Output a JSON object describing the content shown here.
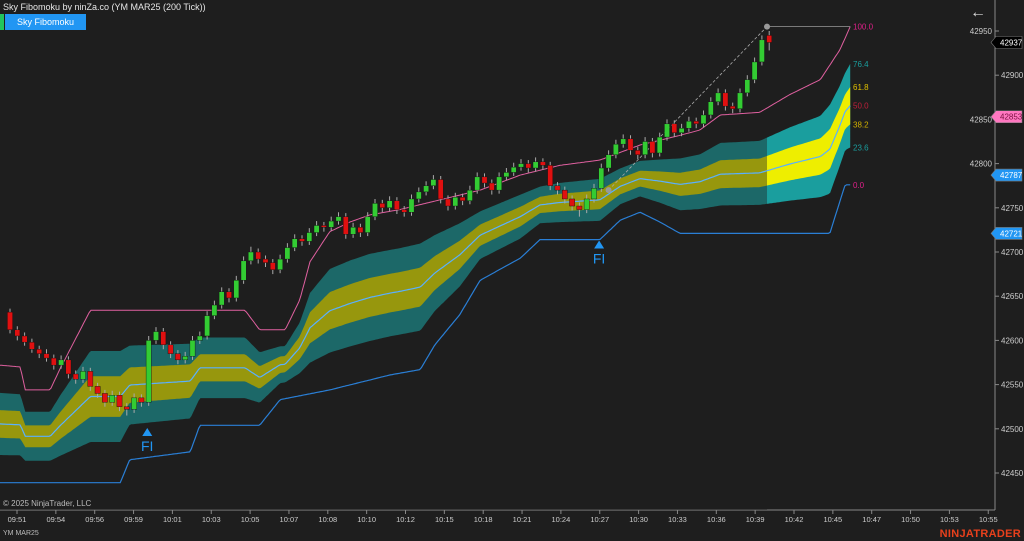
{
  "header": {
    "title": "Sky Fibomoku by ninZa.co (YM MAR25 (200 Tick))",
    "indicator_button": "Sky Fibomoku",
    "back_icon": "arrow-left-icon"
  },
  "footer": {
    "copyright": "© 2025 NinjaTrader, LLC",
    "instrument": "YM MAR25",
    "brand": "NINJATRADER"
  },
  "colors": {
    "background": "#1e1e1e",
    "up": "#33cc33",
    "down": "#e01010",
    "teal": "#1a9e9e",
    "yellow": "#eeee00",
    "upper_line": "#e060a0",
    "lower_line": "#2a7fd6",
    "mid_line": "#5ab0ff",
    "signal": "#2196f3"
  },
  "chart_data": {
    "type": "candlestick",
    "x_unit": "bar index",
    "price_ticks": [
      42950,
      42900,
      42850,
      42800,
      42750,
      42700,
      42650,
      42600,
      42550,
      42500,
      42450
    ],
    "time_ticks": [
      "09:51",
      "09:54",
      "09:56",
      "09:59",
      "10:01",
      "10:03",
      "10:05",
      "10:07",
      "10:08",
      "10:10",
      "10:12",
      "10:15",
      "10:18",
      "10:21",
      "10:24",
      "10:27",
      "10:30",
      "10:33",
      "10:36",
      "10:39",
      "10:42",
      "10:45",
      "10:47",
      "10:50",
      "10:53",
      "10:55"
    ],
    "candles": [
      [
        42632,
        42636,
        42608,
        42612
      ],
      [
        42612,
        42616,
        42600,
        42605
      ],
      [
        42605,
        42609,
        42594,
        42598
      ],
      [
        42598,
        42602,
        42586,
        42590
      ],
      [
        42590,
        42594,
        42580,
        42585
      ],
      [
        42585,
        42590,
        42576,
        42580
      ],
      [
        42580,
        42584,
        42567,
        42572
      ],
      [
        42572,
        42583,
        42568,
        42578
      ],
      [
        42578,
        42582,
        42557,
        42562
      ],
      [
        42562,
        42566,
        42551,
        42556
      ],
      [
        42556,
        42570,
        42552,
        42565
      ],
      [
        42565,
        42569,
        42543,
        42548
      ],
      [
        42548,
        42552,
        42535,
        42540
      ],
      [
        42540,
        42544,
        42525,
        42530
      ],
      [
        42530,
        42543,
        42526,
        42538
      ],
      [
        42538,
        42542,
        42520,
        42525
      ],
      [
        42525,
        42529,
        42515,
        42522
      ],
      [
        42522,
        42540,
        42518,
        42535
      ],
      [
        42535,
        42539,
        42525,
        42530
      ],
      [
        42530,
        42605,
        42526,
        42600
      ],
      [
        42600,
        42615,
        42596,
        42610
      ],
      [
        42610,
        42614,
        42590,
        42595
      ],
      [
        42595,
        42599,
        42580,
        42585
      ],
      [
        42585,
        42589,
        42573,
        42578
      ],
      [
        42578,
        42587,
        42574,
        42582
      ],
      [
        42582,
        42605,
        42578,
        42600
      ],
      [
        42600,
        42610,
        42596,
        42605
      ],
      [
        42605,
        42633,
        42601,
        42628
      ],
      [
        42628,
        42645,
        42624,
        42640
      ],
      [
        42640,
        42660,
        42636,
        42655
      ],
      [
        42655,
        42659,
        42643,
        42648
      ],
      [
        42648,
        42673,
        42644,
        42668
      ],
      [
        42668,
        42695,
        42664,
        42690
      ],
      [
        42690,
        42706,
        42686,
        42700
      ],
      [
        42700,
        42704,
        42687,
        42692
      ],
      [
        42692,
        42696,
        42683,
        42688
      ],
      [
        42688,
        42692,
        42675,
        42680
      ],
      [
        42680,
        42697,
        42676,
        42692
      ],
      [
        42692,
        42710,
        42688,
        42705
      ],
      [
        42705,
        42720,
        42701,
        42715
      ],
      [
        42715,
        42719,
        42707,
        42712
      ],
      [
        42712,
        42727,
        42708,
        42722
      ],
      [
        42722,
        42735,
        42718,
        42730
      ],
      [
        42730,
        42734,
        42723,
        42728
      ],
      [
        42728,
        42740,
        42724,
        42735
      ],
      [
        42735,
        42745,
        42731,
        42740
      ],
      [
        42740,
        42744,
        42715,
        42720
      ],
      [
        42720,
        42733,
        42716,
        42728
      ],
      [
        42728,
        42732,
        42717,
        42722
      ],
      [
        42722,
        42745,
        42718,
        42740
      ],
      [
        42740,
        42760,
        42736,
        42755
      ],
      [
        42755,
        42759,
        42745,
        42750
      ],
      [
        42750,
        42763,
        42746,
        42758
      ],
      [
        42758,
        42762,
        42743,
        42748
      ],
      [
        42748,
        42752,
        42740,
        42745
      ],
      [
        42745,
        42765,
        42741,
        42760
      ],
      [
        42760,
        42773,
        42756,
        42768
      ],
      [
        42768,
        42780,
        42764,
        42775
      ],
      [
        42775,
        42787,
        42771,
        42782
      ],
      [
        42782,
        42786,
        42755,
        42760
      ],
      [
        42760,
        42764,
        42747,
        42752
      ],
      [
        42752,
        42767,
        42748,
        42762
      ],
      [
        42762,
        42766,
        42753,
        42758
      ],
      [
        42758,
        42775,
        42754,
        42770
      ],
      [
        42770,
        42790,
        42766,
        42785
      ],
      [
        42785,
        42789,
        42773,
        42778
      ],
      [
        42778,
        42782,
        42765,
        42770
      ],
      [
        42770,
        42790,
        42766,
        42785
      ],
      [
        42785,
        42795,
        42781,
        42790
      ],
      [
        42790,
        42801,
        42786,
        42796
      ],
      [
        42796,
        42805,
        42792,
        42800
      ],
      [
        42800,
        42804,
        42790,
        42795
      ],
      [
        42795,
        42807,
        42791,
        42802
      ],
      [
        42802,
        42806,
        42793,
        42798
      ],
      [
        42798,
        42802,
        42770,
        42775
      ],
      [
        42775,
        42779,
        42765,
        42770
      ],
      [
        42770,
        42774,
        42755,
        42760
      ],
      [
        42760,
        42764,
        42747,
        42752
      ],
      [
        42752,
        42756,
        42740,
        42748
      ],
      [
        42748,
        42765,
        42744,
        42760
      ],
      [
        42760,
        42777,
        42756,
        42772
      ],
      [
        42772,
        42800,
        42768,
        42795
      ],
      [
        42795,
        42815,
        42791,
        42810
      ],
      [
        42810,
        42827,
        42806,
        42822
      ],
      [
        42822,
        42833,
        42818,
        42828
      ],
      [
        42828,
        42832,
        42810,
        42815
      ],
      [
        42815,
        42819,
        42805,
        42810
      ],
      [
        42810,
        42830,
        42806,
        42825
      ],
      [
        42825,
        42829,
        42807,
        42812
      ],
      [
        42812,
        42835,
        42808,
        42830
      ],
      [
        42830,
        42850,
        42826,
        42845
      ],
      [
        42845,
        42849,
        42830,
        42835
      ],
      [
        42835,
        42845,
        42831,
        42840
      ],
      [
        42840,
        42853,
        42836,
        42848
      ],
      [
        42848,
        42852,
        42840,
        42845
      ],
      [
        42845,
        42860,
        42841,
        42855
      ],
      [
        42855,
        42875,
        42851,
        42870
      ],
      [
        42870,
        42885,
        42866,
        42880
      ],
      [
        42880,
        42884,
        42860,
        42865
      ],
      [
        42865,
        42869,
        42857,
        42862
      ],
      [
        42862,
        42885,
        42858,
        42880
      ],
      [
        42880,
        42900,
        42876,
        42895
      ],
      [
        42895,
        42920,
        42891,
        42915
      ],
      [
        42915,
        42945,
        42911,
        42940
      ],
      [
        42945,
        42950,
        42928,
        42937
      ]
    ],
    "upper_line_100": [
      [
        -1.4,
        42572
      ],
      [
        1.4,
        42570
      ],
      [
        2.1,
        42544
      ],
      [
        5.5,
        42544
      ],
      [
        6.8,
        42567
      ],
      [
        11,
        42634
      ],
      [
        32.2,
        42634
      ],
      [
        34.2,
        42612
      ],
      [
        37.7,
        42612
      ],
      [
        39.7,
        42646
      ],
      [
        41.1,
        42689
      ],
      [
        43.8,
        42723
      ],
      [
        46.6,
        42734
      ],
      [
        49.3,
        42742
      ],
      [
        53.4,
        42748
      ],
      [
        58.9,
        42759
      ],
      [
        64.4,
        42770
      ],
      [
        69.9,
        42787
      ],
      [
        75.3,
        42798
      ],
      [
        80.8,
        42804
      ],
      [
        86.3,
        42821
      ],
      [
        91.8,
        42832
      ],
      [
        94.5,
        42838
      ],
      [
        97.3,
        42855
      ],
      [
        102.7,
        42858
      ],
      [
        106.8,
        42878
      ],
      [
        111,
        42895
      ],
      [
        113.7,
        42929
      ],
      [
        115.1,
        42955
      ]
    ],
    "lower_line_0": [
      [
        -1.4,
        42439
      ],
      [
        15.1,
        42439
      ],
      [
        16.4,
        42465
      ],
      [
        24.7,
        42474
      ],
      [
        26,
        42504
      ],
      [
        34.2,
        42504
      ],
      [
        37,
        42533
      ],
      [
        43.8,
        42544
      ],
      [
        52.1,
        42561
      ],
      [
        56.2,
        42567
      ],
      [
        58.2,
        42595
      ],
      [
        61.6,
        42629
      ],
      [
        64.4,
        42668
      ],
      [
        69.9,
        42693
      ],
      [
        72.6,
        42714
      ],
      [
        80.8,
        42714
      ],
      [
        83.6,
        42736
      ],
      [
        86.3,
        42745
      ],
      [
        89,
        42734
      ],
      [
        91.8,
        42721
      ],
      [
        112.3,
        42721
      ],
      [
        114.4,
        42776
      ],
      [
        115.1,
        42776
      ]
    ],
    "projection_start_index": 103.7,
    "fib_levels": [
      {
        "label": "100.0",
        "value": 1.0,
        "color": "#e0208a"
      },
      {
        "label": "76.4",
        "value": 0.764,
        "color": "#1a9e9e"
      },
      {
        "label": "61.8",
        "value": 0.618,
        "color": "#e0c000"
      },
      {
        "label": "50.0",
        "value": 0.5,
        "color": "#c0203a"
      },
      {
        "label": "38.2",
        "value": 0.382,
        "color": "#d0b000"
      },
      {
        "label": "23.6",
        "value": 0.236,
        "color": "#1a9e9e"
      },
      {
        "label": "0.0",
        "value": 0.0,
        "color": "#e0208a"
      }
    ],
    "signals": [
      {
        "index": 18.8,
        "price": 42510,
        "label": "FI"
      },
      {
        "index": 80.7,
        "price": 42722,
        "label": "FI"
      }
    ],
    "price_badges": [
      {
        "label": "42937",
        "value": 42937,
        "bg": "#000000",
        "fg": "#ffffff"
      },
      {
        "label": "42853",
        "value": 42853,
        "bg": "#ff77c0",
        "fg": "#7a1040"
      },
      {
        "label": "42787",
        "value": 42787,
        "bg": "#2196f3",
        "fg": "#ffffff"
      },
      {
        "label": "42721",
        "value": 42721,
        "bg": "#2196f3",
        "fg": "#ffffff"
      }
    ]
  }
}
